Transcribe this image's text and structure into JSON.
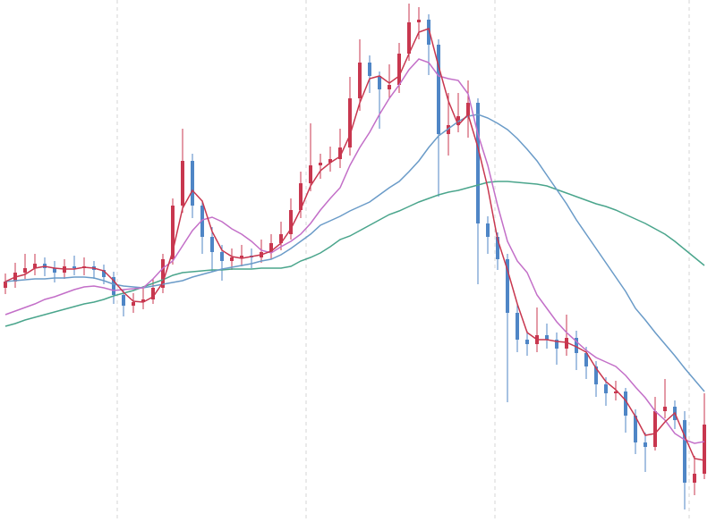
{
  "chart_data": {
    "type": "candlestick",
    "ylim": [
      0,
      584
    ],
    "up_color": "#c8374f",
    "down_color": "#4f86c6",
    "open": [
      262,
      269,
      279,
      284,
      289,
      284,
      279,
      286,
      284,
      286,
      282,
      274,
      254,
      242,
      246,
      249,
      262,
      294,
      354,
      404,
      354,
      319,
      302,
      292,
      296,
      298,
      296,
      302,
      312,
      322,
      349,
      379,
      399,
      402,
      406,
      419,
      474,
      514,
      499,
      484,
      489,
      524,
      559,
      562,
      534,
      434,
      444,
      454,
      469,
      334,
      319,
      294,
      234,
      204,
      199,
      209,
      204,
      194,
      206,
      189,
      174,
      154,
      144,
      146,
      119,
      89,
      84,
      124,
      129,
      114,
      44,
      54
    ],
    "high": [
      278,
      290,
      300,
      300,
      296,
      292,
      294,
      298,
      296,
      292,
      288,
      280,
      260,
      256,
      262,
      272,
      300,
      362,
      440,
      412,
      360,
      330,
      310,
      306,
      310,
      306,
      316,
      322,
      336,
      362,
      392,
      446,
      412,
      420,
      440,
      498,
      540,
      522,
      504,
      512,
      536,
      580,
      576,
      568,
      540,
      480,
      480,
      494,
      474,
      342,
      324,
      300,
      244,
      214,
      240,
      222,
      212,
      232,
      214,
      196,
      180,
      162,
      158,
      150,
      126,
      100,
      140,
      160,
      136,
      124,
      74,
      144
    ],
    "low": [
      255,
      262,
      272,
      276,
      275,
      268,
      272,
      276,
      276,
      272,
      266,
      244,
      230,
      234,
      238,
      244,
      256,
      288,
      346,
      340,
      300,
      280,
      270,
      282,
      286,
      284,
      290,
      294,
      304,
      316,
      340,
      370,
      384,
      392,
      396,
      410,
      460,
      480,
      440,
      474,
      480,
      516,
      540,
      500,
      364,
      410,
      436,
      430,
      266,
      300,
      282,
      134,
      190,
      186,
      190,
      194,
      176,
      186,
      170,
      160,
      140,
      130,
      136,
      100,
      76,
      56,
      80,
      116,
      104,
      14,
      30,
      48
    ],
    "close": [
      269,
      279,
      284,
      289,
      284,
      279,
      286,
      284,
      286,
      282,
      274,
      254,
      242,
      246,
      249,
      262,
      294,
      354,
      404,
      354,
      319,
      302,
      292,
      296,
      298,
      296,
      302,
      312,
      322,
      349,
      379,
      399,
      402,
      406,
      419,
      474,
      514,
      499,
      484,
      489,
      524,
      559,
      562,
      534,
      434,
      444,
      454,
      469,
      334,
      319,
      294,
      234,
      204,
      199,
      209,
      204,
      194,
      206,
      189,
      174,
      154,
      144,
      146,
      119,
      89,
      84,
      124,
      129,
      114,
      44,
      54,
      109
    ],
    "lines": [
      {
        "color": "#4aa58c",
        "values": [
          219,
          222,
          226,
          229,
          232,
          235,
          238,
          241,
          244,
          246,
          249,
          253,
          256,
          259,
          263,
          267,
          271,
          276,
          279,
          280,
          281,
          282,
          282,
          283,
          283,
          283,
          284,
          284,
          284,
          286,
          292,
          296,
          301,
          308,
          316,
          320,
          326,
          332,
          338,
          344,
          348,
          353,
          358,
          362,
          366,
          369,
          371,
          374,
          377,
          380,
          381,
          381,
          380,
          379,
          378,
          376,
          372,
          368,
          364,
          360,
          356,
          353,
          349,
          344,
          339,
          334,
          328,
          322,
          314,
          305,
          296,
          287
        ]
      },
      {
        "color": "#6a9bc8",
        "values": [
          269,
          270,
          271,
          272,
          272,
          273,
          273,
          274,
          274,
          273,
          270,
          266,
          264,
          263,
          262,
          264,
          266,
          268,
          270,
          274,
          277,
          280,
          283,
          285,
          287,
          289,
          292,
          294,
          299,
          306,
          314,
          322,
          332,
          337,
          342,
          348,
          353,
          358,
          366,
          374,
          381,
          392,
          404,
          419,
          432,
          440,
          448,
          454,
          456,
          452,
          446,
          439,
          429,
          417,
          404,
          388,
          372,
          356,
          338,
          322,
          306,
          290,
          274,
          258,
          239,
          226,
          212,
          199,
          186,
          172,
          159,
          146
        ]
      },
      {
        "color": "#c36fc8",
        "values": [
          232,
          236,
          240,
          244,
          249,
          252,
          256,
          260,
          263,
          264,
          262,
          259,
          260,
          261,
          262,
          272,
          284,
          292,
          309,
          326,
          338,
          341,
          336,
          328,
          322,
          314,
          304,
          301,
          308,
          314,
          322,
          334,
          349,
          362,
          374,
          399,
          419,
          436,
          456,
          474,
          489,
          506,
          518,
          514,
          499,
          496,
          494,
          479,
          434,
          399,
          354,
          314,
          292,
          279,
          254,
          239,
          224,
          212,
          202,
          192,
          184,
          179,
          174,
          164,
          151,
          139,
          124,
          114,
          99,
          92,
          88,
          90
        ]
      },
      {
        "color": "#c8374f",
        "values": [
          269,
          274,
          277,
          284,
          286,
          284,
          283,
          283,
          285,
          284,
          281,
          270,
          257,
          247,
          246,
          252,
          268,
          303,
          351,
          371,
          359,
          325,
          304,
          297,
          295,
          297,
          299,
          303,
          312,
          328,
          350,
          376,
          393,
          402,
          409,
          433,
          469,
          496,
          499,
          491,
          499,
          524,
          548,
          552,
          510,
          471,
          444,
          456,
          419,
          374,
          316,
          282,
          244,
          212,
          204,
          204,
          202,
          201,
          196,
          190,
          172,
          157,
          148,
          136,
          118,
          97,
          99,
          112,
          122,
          96,
          71,
          69
        ]
      }
    ]
  }
}
